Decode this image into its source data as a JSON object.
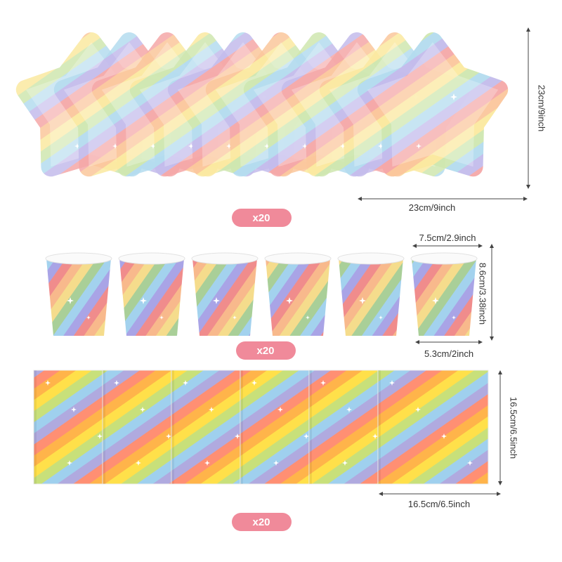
{
  "plates": {
    "height": "23cm/9inch",
    "width": "23cm/9inch",
    "count": "x20"
  },
  "cups": {
    "top_width": "7.5cm/2.9inch",
    "height": "8.6cm/3.38inch",
    "bottom_width": "5.3cm/2inch",
    "count": "x20"
  },
  "napkins": {
    "height": "16.5cm/6.5inch",
    "width": "16.5cm/6.5inch",
    "count": "x20"
  }
}
